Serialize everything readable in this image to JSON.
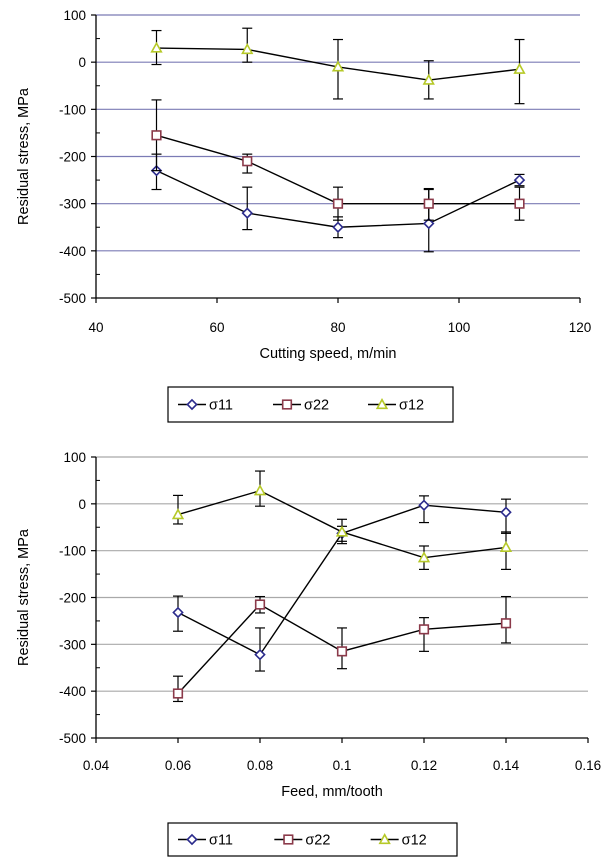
{
  "chart_data": [
    {
      "type": "line",
      "title": "",
      "xlabel": "Cutting speed, m/min",
      "ylabel": "Residual stress, MPa",
      "xlim": [
        40,
        120
      ],
      "ylim": [
        -500,
        100
      ],
      "xticks": [
        40,
        60,
        80,
        100,
        120
      ],
      "yticks": [
        100,
        0,
        -100,
        -200,
        -300,
        -400,
        -500
      ],
      "grid": "horizontal",
      "gridColor": "#7b7bb5",
      "legend": "bottom",
      "series": [
        {
          "name": "σ11",
          "marker": "diamond",
          "color": "#2b2b8c",
          "points": [
            {
              "x": 50,
              "y": -230,
              "lo": -270,
              "hi": -195
            },
            {
              "x": 65,
              "y": -320,
              "lo": -355,
              "hi": -265
            },
            {
              "x": 80,
              "y": -350,
              "lo": -372,
              "hi": -328
            },
            {
              "x": 95,
              "y": -342,
              "lo": -402,
              "hi": -270
            },
            {
              "x": 110,
              "y": -250,
              "lo": -262,
              "hi": -238
            }
          ]
        },
        {
          "name": "σ22",
          "marker": "square",
          "color": "#8b3a4a",
          "points": [
            {
              "x": 50,
              "y": -155,
              "lo": -230,
              "hi": -80
            },
            {
              "x": 65,
              "y": -210,
              "lo": -235,
              "hi": -195
            },
            {
              "x": 80,
              "y": -300,
              "lo": -335,
              "hi": -265
            },
            {
              "x": 95,
              "y": -300,
              "lo": -335,
              "hi": -268
            },
            {
              "x": 110,
              "y": -300,
              "lo": -335,
              "hi": -265
            }
          ]
        },
        {
          "name": "σ12",
          "marker": "triangle",
          "color": "#b6c928",
          "points": [
            {
              "x": 50,
              "y": 30,
              "lo": -5,
              "hi": 67
            },
            {
              "x": 65,
              "y": 27,
              "lo": 0,
              "hi": 72
            },
            {
              "x": 80,
              "y": -10,
              "lo": -78,
              "hi": 48
            },
            {
              "x": 95,
              "y": -38,
              "lo": -78,
              "hi": 3
            },
            {
              "x": 110,
              "y": -15,
              "lo": -88,
              "hi": 48
            }
          ]
        }
      ]
    },
    {
      "type": "line",
      "title": "",
      "xlabel": "Feed, mm/tooth",
      "ylabel": "Residual stress, MPa",
      "xlim": [
        0.04,
        0.16
      ],
      "ylim": [
        -500,
        100
      ],
      "xticks": [
        0.04,
        0.06,
        0.08,
        0.1,
        0.12,
        0.14,
        0.16
      ],
      "yticks": [
        100,
        0,
        -100,
        -200,
        -300,
        -400,
        -500
      ],
      "grid": "horizontal",
      "gridColor": "#a9a9a9",
      "legend": "bottom",
      "series": [
        {
          "name": "σ11",
          "marker": "diamond",
          "color": "#2b2b8c",
          "points": [
            {
              "x": 0.06,
              "y": -232,
              "lo": -272,
              "hi": -197
            },
            {
              "x": 0.08,
              "y": -322,
              "lo": -357,
              "hi": -265
            },
            {
              "x": 0.1,
              "y": -63,
              "lo": -80,
              "hi": -48
            },
            {
              "x": 0.12,
              "y": -3,
              "lo": -40,
              "hi": 17
            },
            {
              "x": 0.14,
              "y": -18,
              "lo": -63,
              "hi": 10
            }
          ]
        },
        {
          "name": "σ22",
          "marker": "square",
          "color": "#8b3a4a",
          "points": [
            {
              "x": 0.06,
              "y": -405,
              "lo": -422,
              "hi": -368
            },
            {
              "x": 0.08,
              "y": -215,
              "lo": -233,
              "hi": -198
            },
            {
              "x": 0.1,
              "y": -315,
              "lo": -352,
              "hi": -265
            },
            {
              "x": 0.12,
              "y": -268,
              "lo": -315,
              "hi": -243
            },
            {
              "x": 0.14,
              "y": -255,
              "lo": -297,
              "hi": -198
            }
          ]
        },
        {
          "name": "σ12",
          "marker": "triangle",
          "color": "#b6c928",
          "points": [
            {
              "x": 0.06,
              "y": -23,
              "lo": -43,
              "hi": 18
            },
            {
              "x": 0.08,
              "y": 28,
              "lo": -5,
              "hi": 70
            },
            {
              "x": 0.1,
              "y": -60,
              "lo": -85,
              "hi": -33
            },
            {
              "x": 0.12,
              "y": -115,
              "lo": -140,
              "hi": -90
            },
            {
              "x": 0.14,
              "y": -93,
              "lo": -140,
              "hi": -60
            }
          ]
        }
      ]
    }
  ]
}
